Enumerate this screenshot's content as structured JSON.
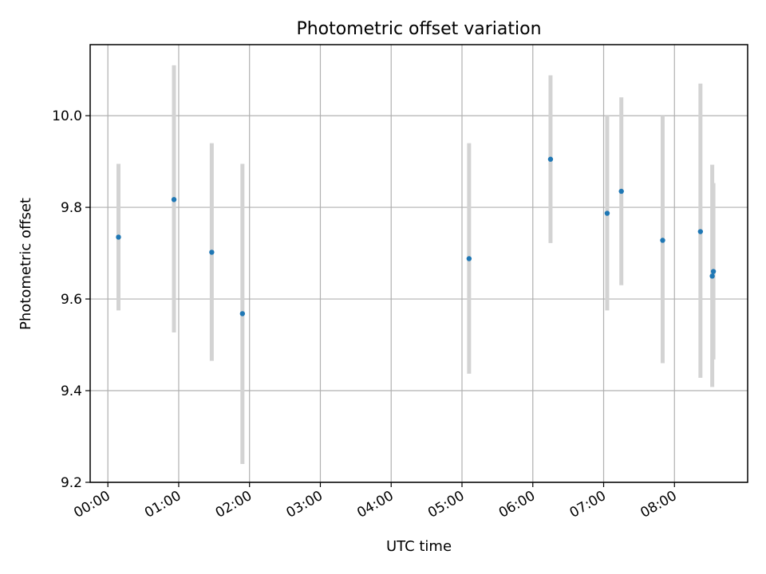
{
  "chart_data": {
    "type": "scatter",
    "title": "Photometric offset variation",
    "xlabel": "UTC time",
    "ylabel": "Photometric offset",
    "x_tick_labels": [
      "00:00",
      "01:00",
      "02:00",
      "03:00",
      "04:00",
      "05:00",
      "06:00",
      "07:00",
      "08:00"
    ],
    "y_tick_labels": [
      "9.2",
      "9.4",
      "9.6",
      "9.8",
      "10.0"
    ],
    "y_ticks": [
      9.2,
      9.4,
      9.6,
      9.8,
      10.0
    ],
    "xlim": [
      "23:45",
      "09:02"
    ],
    "ylim": [
      9.2,
      10.155
    ],
    "grid": true,
    "colors": {
      "point": "#1f77b4",
      "errorbar": "#d3d3d3",
      "grid": "#b0b0b0"
    },
    "points": [
      {
        "x": "00:09",
        "y": 9.735,
        "y_low": 9.575,
        "y_high": 9.895
      },
      {
        "x": "00:56",
        "y": 9.817,
        "y_low": 9.527,
        "y_high": 10.11
      },
      {
        "x": "01:28",
        "y": 9.702,
        "y_low": 9.465,
        "y_high": 9.94
      },
      {
        "x": "01:54",
        "y": 9.568,
        "y_low": 9.24,
        "y_high": 9.895
      },
      {
        "x": "05:06",
        "y": 9.688,
        "y_low": 9.437,
        "y_high": 9.94
      },
      {
        "x": "06:15",
        "y": 9.905,
        "y_low": 9.722,
        "y_high": 10.088
      },
      {
        "x": "07:03",
        "y": 9.787,
        "y_low": 9.575,
        "y_high": 10.0
      },
      {
        "x": "07:15",
        "y": 9.835,
        "y_low": 9.63,
        "y_high": 10.04
      },
      {
        "x": "07:50",
        "y": 9.728,
        "y_low": 9.46,
        "y_high": 10.0
      },
      {
        "x": "08:22",
        "y": 9.747,
        "y_low": 9.428,
        "y_high": 10.07
      },
      {
        "x": "08:32",
        "y": 9.65,
        "y_low": 9.408,
        "y_high": 9.893
      },
      {
        "x": "08:33",
        "y": 9.66,
        "y_low": 9.468,
        "y_high": 9.853
      }
    ]
  }
}
